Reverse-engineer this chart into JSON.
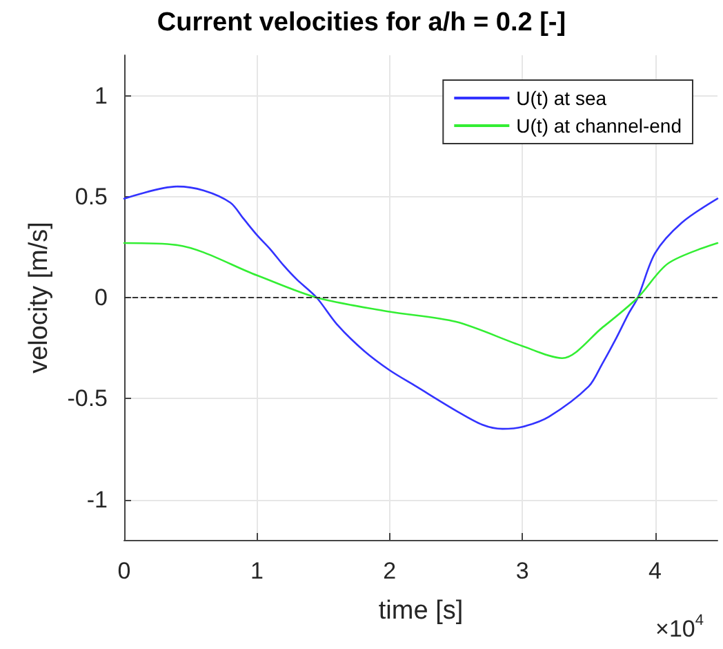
{
  "chart_data": {
    "type": "line",
    "title": "Current velocities for a/h = 0.2 [-]",
    "xlabel": "time [s]",
    "ylabel": "velocity [m/s]",
    "annotations": [
      "×10$^{4}$"
    ],
    "xlim": [
      0,
      4.47
    ],
    "xticks": [
      0,
      1,
      2,
      3,
      4
    ],
    "ylim": [
      -1.2,
      1.2
    ],
    "yticks": [
      -1,
      -0.5,
      0,
      0.5,
      1
    ],
    "grid": true,
    "legend": "top right",
    "line_style": "solid",
    "marker": "none",
    "ref_lines": [
      {
        "axis": "y",
        "value": 0,
        "color": "#333333",
        "line_style": "dashed"
      }
    ],
    "series": [
      {
        "name": "U(t) at sea",
        "color": "#3333ff",
        "x": [
          0,
          0.4,
          0.6,
          0.8,
          0.9,
          1.0,
          1.1,
          1.2,
          1.3,
          1.45,
          1.6,
          1.8,
          2.0,
          2.2,
          2.5,
          2.7,
          2.85,
          3.0,
          3.2,
          3.5,
          3.6,
          3.7,
          3.8,
          3.87,
          4.0,
          4.2,
          4.47
        ],
        "values": [
          0.49,
          0.55,
          0.53,
          0.47,
          0.39,
          0.31,
          0.24,
          0.16,
          0.09,
          0,
          -0.13,
          -0.26,
          -0.36,
          -0.44,
          -0.56,
          -0.63,
          -0.65,
          -0.64,
          -0.59,
          -0.44,
          -0.33,
          -0.21,
          -0.08,
          0,
          0.22,
          0.37,
          0.49
        ]
      },
      {
        "name": "U(t) at channel-end",
        "color": "#33ee33",
        "x": [
          0,
          0.4,
          1.0,
          1.45,
          2.0,
          2.5,
          3.0,
          3.3,
          3.6,
          3.87,
          4.1,
          4.47
        ],
        "values": [
          0.27,
          0.26,
          0.11,
          0,
          -0.07,
          -0.12,
          -0.24,
          -0.3,
          -0.15,
          0,
          0.17,
          0.27
        ]
      }
    ]
  }
}
